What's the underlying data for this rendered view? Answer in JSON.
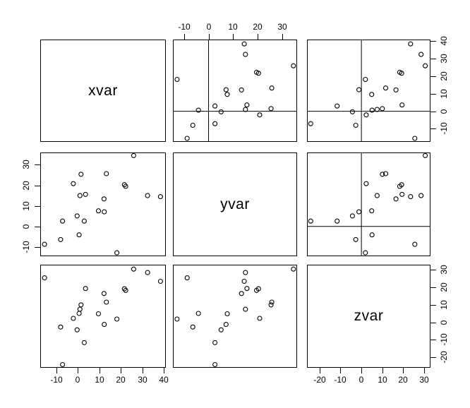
{
  "labels": {
    "xvar": "xvar",
    "yvar": "yvar",
    "zvar": "zvar"
  },
  "colors": {
    "foreground": "#000000",
    "background": "#ffffff"
  },
  "chart_data": {
    "type": "scatter",
    "subtype": "pairs-scatterplot-matrix",
    "title": "",
    "variables": [
      "xvar",
      "yvar",
      "zvar"
    ],
    "marker": "open-circle",
    "grid": false,
    "legend": "none",
    "axes": {
      "xvar": {
        "lim": [
          -17.5,
          41.0
        ],
        "ticks": [
          -10,
          0,
          10,
          20,
          30,
          40
        ]
      },
      "yvar": {
        "lim": [
          -14.5,
          36.0
        ],
        "ticks": [
          -10,
          0,
          10,
          20,
          30
        ]
      },
      "zvar": {
        "lim": [
          -26.0,
          33.0
        ],
        "ticks": [
          -20,
          -10,
          0,
          10,
          20,
          30
        ]
      }
    },
    "points": [
      {
        "xvar": 26.0,
        "yvar": 34.5,
        "zvar": 30.5
      },
      {
        "xvar": 32.5,
        "yvar": 15.0,
        "zvar": 28.5
      },
      {
        "xvar": 38.5,
        "yvar": 14.5,
        "zvar": 23.5
      },
      {
        "xvar": -15.5,
        "yvar": -8.7,
        "zvar": 25.5
      },
      {
        "xvar": 3.6,
        "yvar": 15.6,
        "zvar": 19.4
      },
      {
        "xvar": 21.7,
        "yvar": 20.3,
        "zvar": 19.2
      },
      {
        "xvar": 22.3,
        "yvar": 19.5,
        "zvar": 18.3
      },
      {
        "xvar": 12.2,
        "yvar": 13.4,
        "zvar": 16.5
      },
      {
        "xvar": 13.3,
        "yvar": 25.7,
        "zvar": 11.6
      },
      {
        "xvar": 1.5,
        "yvar": 25.4,
        "zvar": 10.0
      },
      {
        "xvar": 1.0,
        "yvar": 15.0,
        "zvar": 7.5
      },
      {
        "xvar": 9.6,
        "yvar": 7.6,
        "zvar": 4.9
      },
      {
        "xvar": 0.6,
        "yvar": -4.1,
        "zvar": 5.1
      },
      {
        "xvar": -2.1,
        "yvar": 20.8,
        "zvar": 2.3
      },
      {
        "xvar": 18.2,
        "yvar": -12.8,
        "zvar": 1.9
      },
      {
        "xvar": 12.3,
        "yvar": 7.1,
        "zvar": -1.2
      },
      {
        "xvar": -8.0,
        "yvar": -6.4,
        "zvar": -2.7
      },
      {
        "xvar": -0.3,
        "yvar": 5.1,
        "zvar": -4.3
      },
      {
        "xvar": 3.0,
        "yvar": 2.6,
        "zvar": -11.6
      },
      {
        "xvar": -7.1,
        "yvar": 2.6,
        "zvar": -24.2
      }
    ],
    "panels": [
      {
        "row": 0,
        "col": 0,
        "type": "label",
        "label": "xvar"
      },
      {
        "row": 0,
        "col": 1,
        "type": "scatter",
        "x": "yvar",
        "y": "xvar",
        "ablines": true
      },
      {
        "row": 0,
        "col": 2,
        "type": "scatter",
        "x": "zvar",
        "y": "xvar",
        "ablines": true
      },
      {
        "row": 1,
        "col": 0,
        "type": "scatter",
        "x": "xvar",
        "y": "yvar",
        "ablines": false
      },
      {
        "row": 1,
        "col": 1,
        "type": "label",
        "label": "yvar"
      },
      {
        "row": 1,
        "col": 2,
        "type": "scatter",
        "x": "zvar",
        "y": "yvar",
        "ablines": true
      },
      {
        "row": 2,
        "col": 0,
        "type": "scatter",
        "x": "xvar",
        "y": "zvar",
        "ablines": false
      },
      {
        "row": 2,
        "col": 1,
        "type": "scatter",
        "x": "yvar",
        "y": "zvar",
        "ablines": false
      },
      {
        "row": 2,
        "col": 2,
        "type": "label",
        "label": "zvar"
      }
    ],
    "side_axes": [
      {
        "var": "yvar",
        "side": "top",
        "col": 1
      },
      {
        "var": "xvar",
        "side": "right",
        "row": 0
      },
      {
        "var": "yvar",
        "side": "left",
        "row": 1
      },
      {
        "var": "zvar",
        "side": "right",
        "row": 2
      },
      {
        "var": "xvar",
        "side": "bottom",
        "col": 0
      },
      {
        "var": "zvar",
        "side": "bottom",
        "col": 2
      }
    ]
  }
}
